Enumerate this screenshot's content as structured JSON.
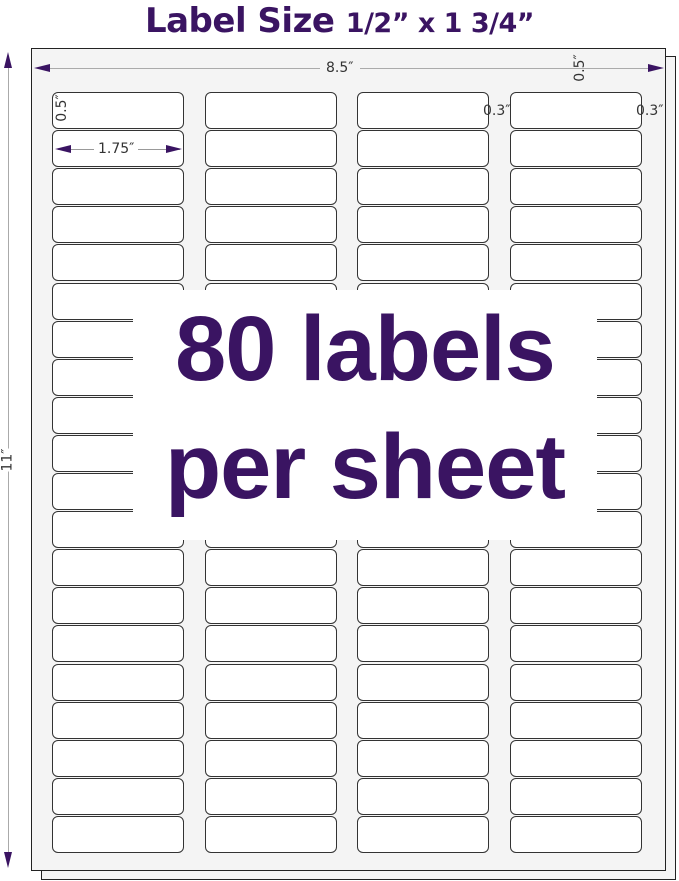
{
  "title": {
    "main": "Label Size",
    "size": "1/2” x 1 3/4”"
  },
  "dimensions": {
    "sheet_width": "8.5″",
    "sheet_height": "11″",
    "top_margin": "0.5″",
    "label_height": "0.5″",
    "label_width": "1.75″",
    "side_margin_left": "0.3″",
    "side_margin_right": "0.3″"
  },
  "headline": {
    "line1": "80 labels",
    "line2": "per sheet"
  },
  "grid": {
    "columns": 4,
    "rows": 20
  },
  "colors": {
    "accent": "#3a1462"
  }
}
